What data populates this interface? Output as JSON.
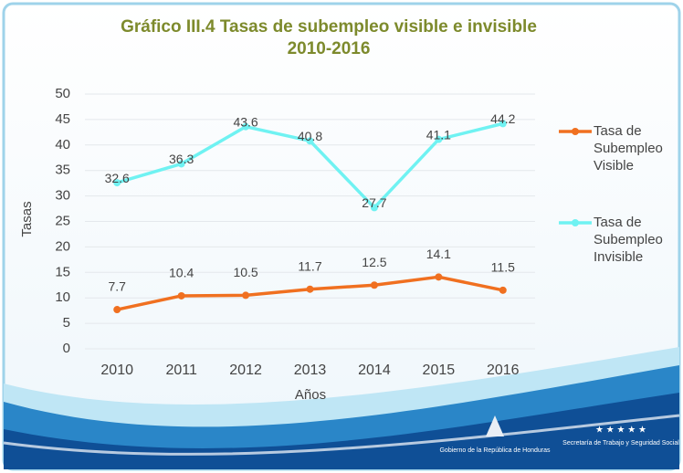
{
  "chart_data": {
    "type": "line",
    "title": "Gráfico III.4  Tasas de subempleo visible e invisible",
    "subtitle": "2010-2016",
    "x_label": "Años",
    "y_label": "Tasas",
    "categories": [
      "2010",
      "2011",
      "2012",
      "2013",
      "2014",
      "2015",
      "2016"
    ],
    "series": [
      {
        "name": "Tasa de Subempleo Visible",
        "color": "#f07020",
        "values": [
          7.7,
          10.4,
          10.5,
          11.7,
          12.5,
          14.1,
          11.5
        ]
      },
      {
        "name": "Tasa de Subempleo Invisible",
        "color": "#6ff2f2",
        "values": [
          32.6,
          36.3,
          43.6,
          40.8,
          27.7,
          41.1,
          44.2
        ]
      }
    ],
    "ylim": [
      0,
      50
    ],
    "yticks": [
      0,
      5,
      10,
      15,
      20,
      25,
      30,
      35,
      40,
      45,
      50
    ],
    "grid": true,
    "legend": "right"
  },
  "footer": {
    "left": "Gobierno de la República de Honduras",
    "right": "Secretaría de Trabajo y Seguridad Social"
  }
}
